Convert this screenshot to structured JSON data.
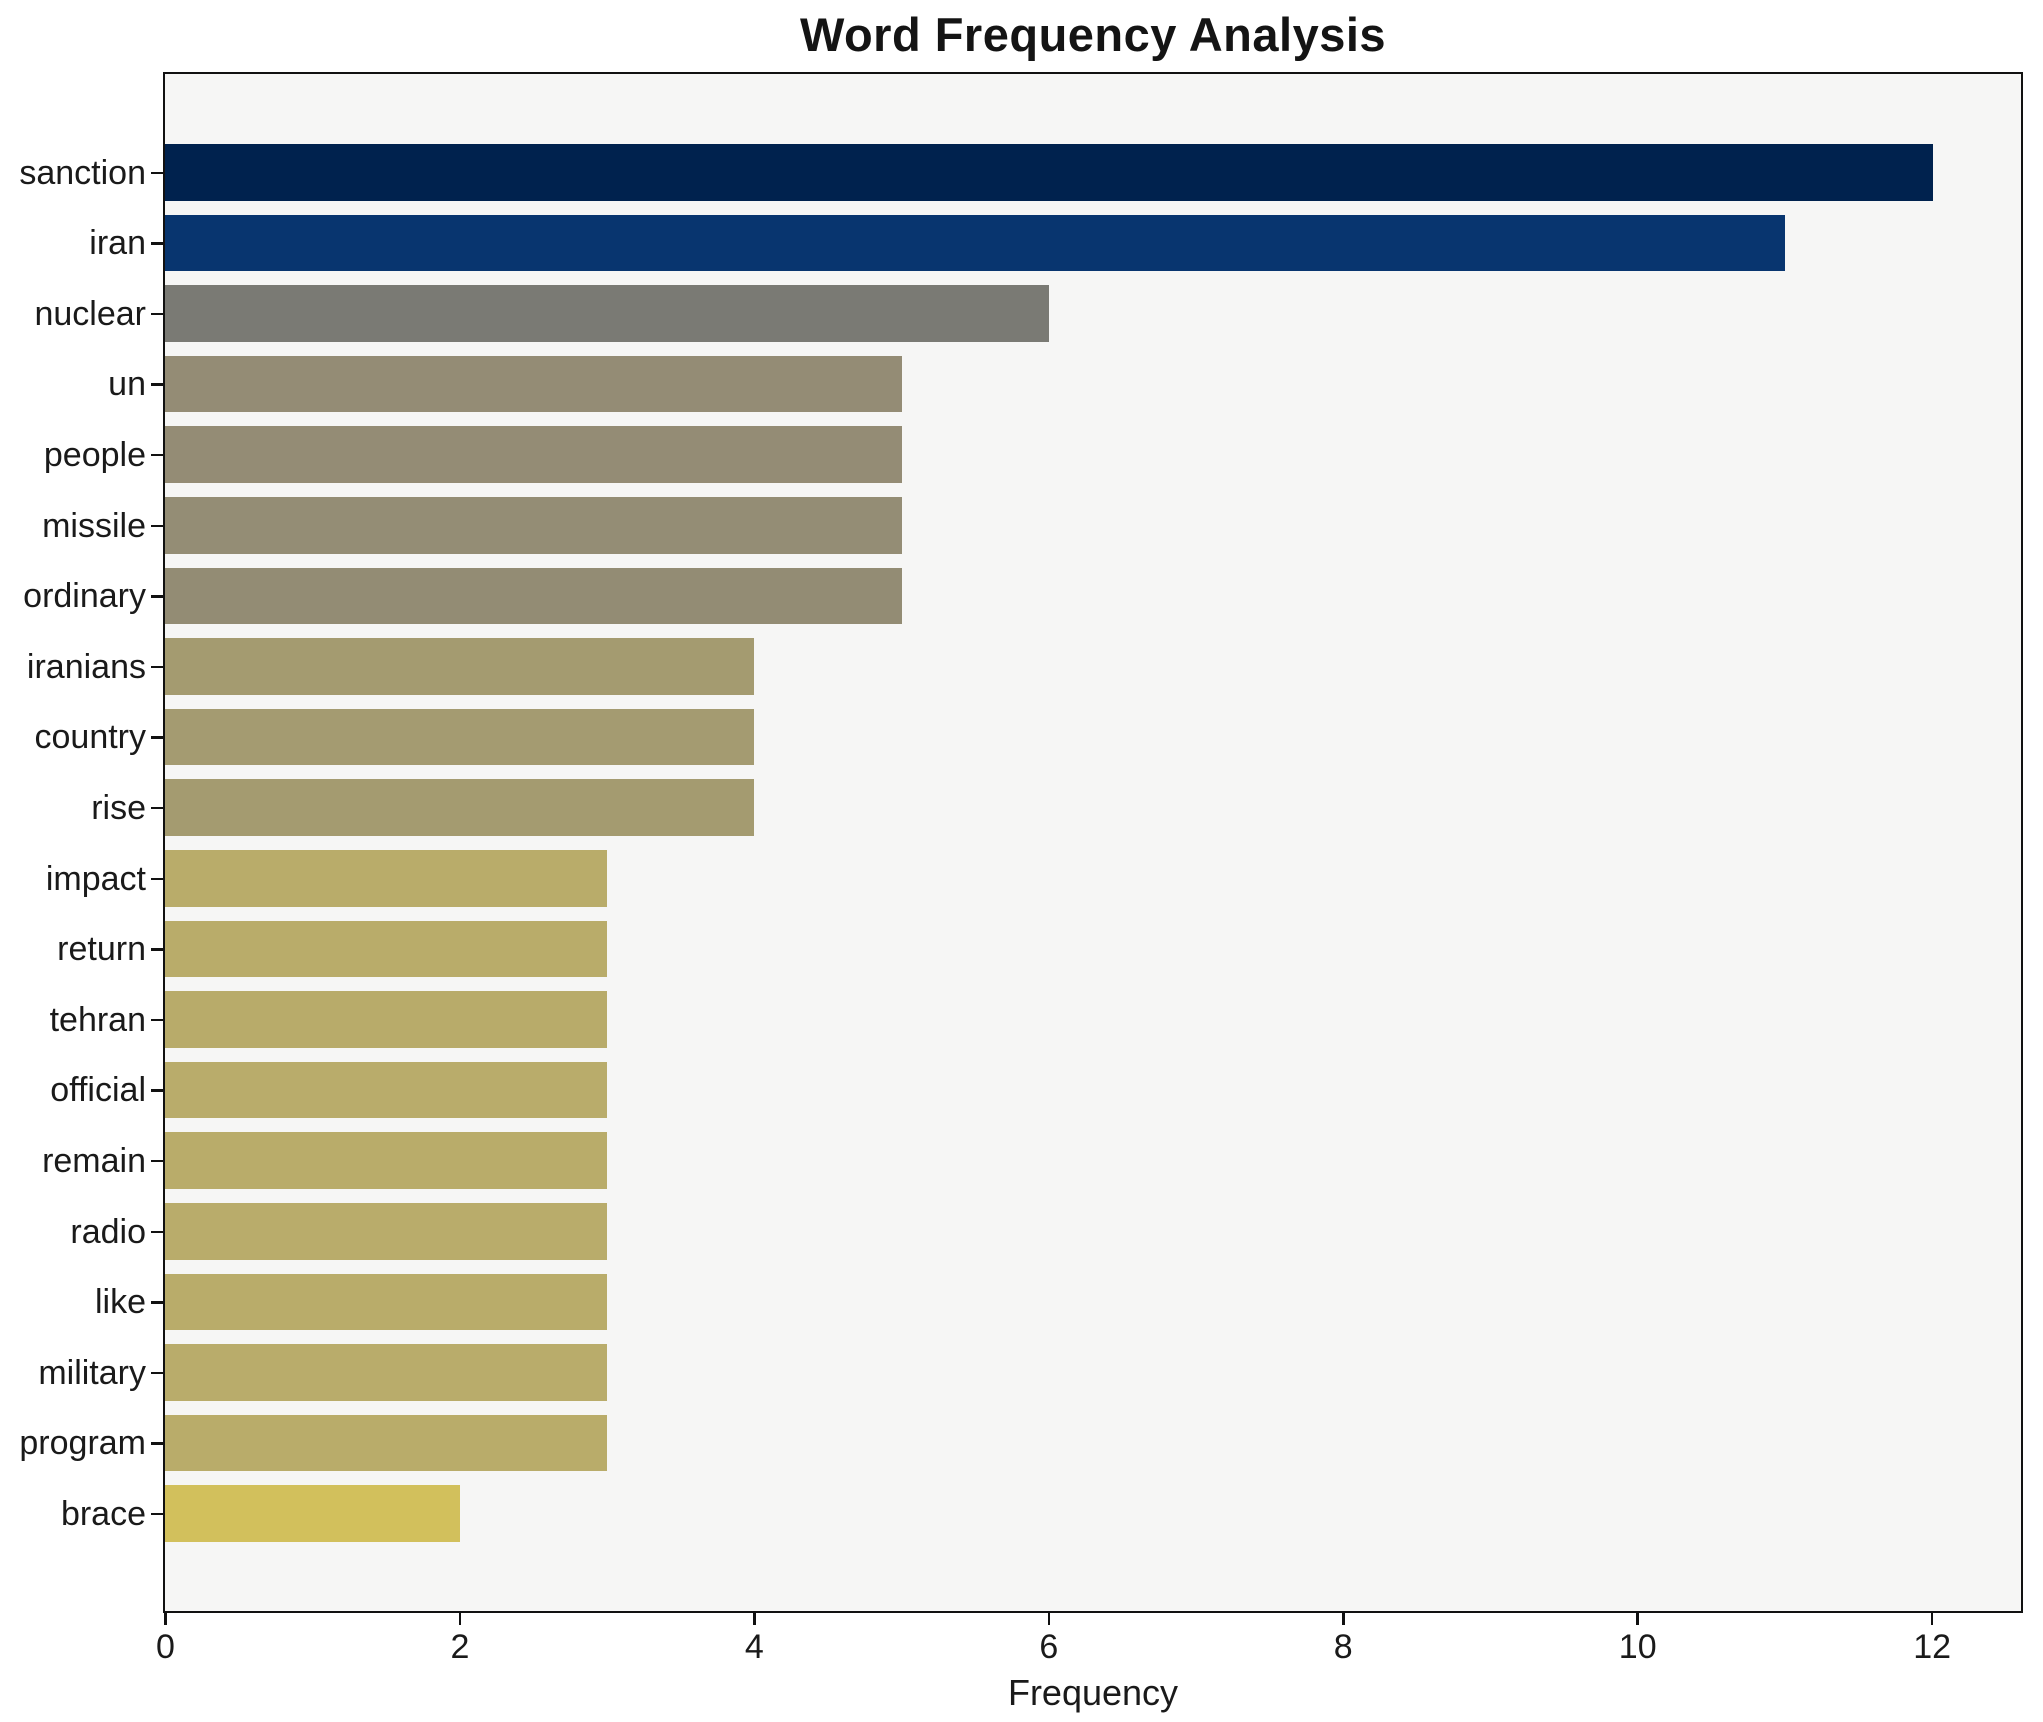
{
  "title": "Word Frequency Analysis",
  "chart_data": {
    "type": "bar",
    "orientation": "horizontal",
    "title": "Word Frequency Analysis",
    "xlabel": "Frequency",
    "ylabel": "",
    "categories": [
      "sanction",
      "iran",
      "nuclear",
      "un",
      "people",
      "missile",
      "ordinary",
      "iranians",
      "country",
      "rise",
      "impact",
      "return",
      "tehran",
      "official",
      "remain",
      "radio",
      "like",
      "military",
      "program",
      "brace"
    ],
    "values": [
      12,
      11,
      6,
      5,
      5,
      5,
      5,
      4,
      4,
      4,
      3,
      3,
      3,
      3,
      3,
      3,
      3,
      3,
      3,
      2
    ],
    "bar_colors": [
      "#00224e",
      "#08356f",
      "#7a7a74",
      "#948c75",
      "#948c75",
      "#948d75",
      "#938c74",
      "#a49b70",
      "#a49b71",
      "#a49b70",
      "#b9ac6a",
      "#b9ac6a",
      "#b8ab6a",
      "#b9ac6b",
      "#b9ac6a",
      "#b9ac6b",
      "#b9ac6a",
      "#b9ac6b",
      "#b9ac6a",
      "#d2c05c"
    ],
    "x_ticks": [
      0,
      2,
      4,
      6,
      8,
      10,
      12
    ],
    "xlim": [
      0,
      12.6
    ],
    "grid": false,
    "legend": null,
    "plot_background": "#f6f6f5",
    "figure_background": "#ffffff",
    "axis_color": "#111111"
  }
}
